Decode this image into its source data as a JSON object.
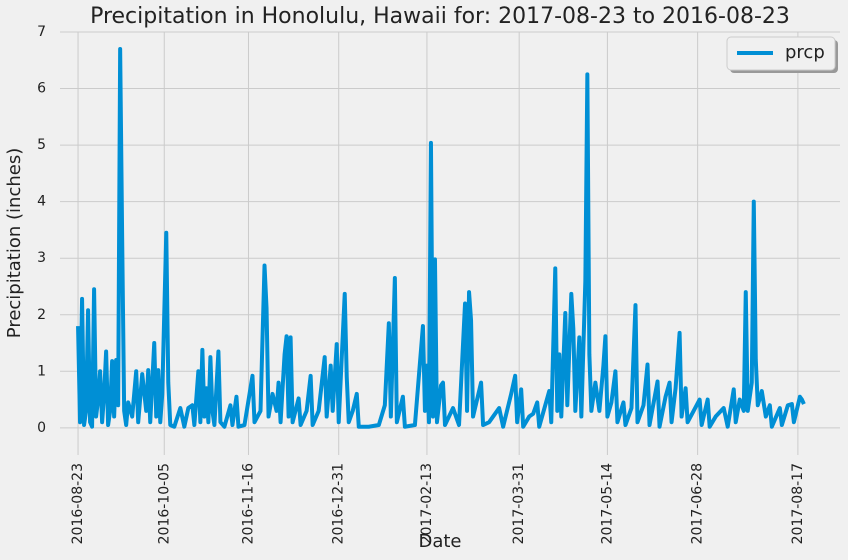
{
  "chart_data": {
    "type": "line",
    "title": "Precipitation in Honolulu, Hawaii for: 2017-08-23 to 2016-08-23",
    "x_label": "Date",
    "y_label": "Precipitation (inches)",
    "x": [
      "2016-08-23",
      "2016-08-24",
      "2016-08-25",
      "2016-08-26",
      "2016-08-27",
      "2016-08-28",
      "2016-08-29",
      "2016-08-30",
      "2016-08-31",
      "2016-09-01",
      "2016-09-02",
      "2016-09-03",
      "2016-09-04",
      "2016-09-05",
      "2016-09-06",
      "2016-09-07",
      "2016-09-08",
      "2016-09-09",
      "2016-09-10",
      "2016-09-11",
      "2016-09-12",
      "2016-09-13",
      "2016-09-14",
      "2016-09-15",
      "2016-09-16",
      "2016-09-17",
      "2016-09-19",
      "2016-09-21",
      "2016-09-22",
      "2016-09-24",
      "2016-09-26",
      "2016-09-27",
      "2016-09-28",
      "2016-09-30",
      "2016-10-01",
      "2016-10-02",
      "2016-10-03",
      "2016-10-04",
      "2016-10-06",
      "2016-10-07",
      "2016-10-08",
      "2016-10-10",
      "2016-10-13",
      "2016-10-15",
      "2016-10-17",
      "2016-10-19",
      "2016-10-20",
      "2016-10-22",
      "2016-10-23",
      "2016-10-24",
      "2016-10-25",
      "2016-10-26",
      "2016-10-27",
      "2016-10-28",
      "2016-10-29",
      "2016-10-30",
      "2016-11-01",
      "2016-11-02",
      "2016-11-04",
      "2016-11-07",
      "2016-11-08",
      "2016-11-10",
      "2016-11-11",
      "2016-11-14",
      "2016-11-18",
      "2016-11-19",
      "2016-11-22",
      "2016-11-24",
      "2016-11-25",
      "2016-11-26",
      "2016-11-28",
      "2016-11-30",
      "2016-12-01",
      "2016-12-02",
      "2016-12-04",
      "2016-12-05",
      "2016-12-06",
      "2016-12-07",
      "2016-12-08",
      "2016-12-11",
      "2016-12-12",
      "2016-12-15",
      "2016-12-17",
      "2016-12-18",
      "2016-12-21",
      "2016-12-24",
      "2016-12-25",
      "2016-12-27",
      "2016-12-28",
      "2016-12-30",
      "2016-12-31",
      "2017-01-03",
      "2017-01-04",
      "2017-01-05",
      "2017-01-07",
      "2017-01-09",
      "2017-01-10",
      "2017-01-15",
      "2017-01-20",
      "2017-01-23",
      "2017-01-25",
      "2017-01-26",
      "2017-01-28",
      "2017-01-29",
      "2017-02-01",
      "2017-02-02",
      "2017-02-07",
      "2017-02-11",
      "2017-02-12",
      "2017-02-13",
      "2017-02-14",
      "2017-02-15",
      "2017-02-16",
      "2017-02-17",
      "2017-02-18",
      "2017-02-20",
      "2017-02-21",
      "2017-02-22",
      "2017-02-26",
      "2017-03-01",
      "2017-03-04",
      "2017-03-05",
      "2017-03-06",
      "2017-03-07",
      "2017-03-08",
      "2017-03-10",
      "2017-03-12",
      "2017-03-13",
      "2017-03-16",
      "2017-03-21",
      "2017-03-23",
      "2017-03-27",
      "2017-03-29",
      "2017-03-30",
      "2017-04-01",
      "2017-04-02",
      "2017-04-05",
      "2017-04-07",
      "2017-04-09",
      "2017-04-10",
      "2017-04-15",
      "2017-04-16",
      "2017-04-18",
      "2017-04-19",
      "2017-04-20",
      "2017-04-21",
      "2017-04-23",
      "2017-04-24",
      "2017-04-26",
      "2017-04-27",
      "2017-04-28",
      "2017-04-30",
      "2017-05-01",
      "2017-05-03",
      "2017-05-04",
      "2017-05-05",
      "2017-05-06",
      "2017-05-08",
      "2017-05-10",
      "2017-05-12",
      "2017-05-13",
      "2017-05-14",
      "2017-05-16",
      "2017-05-18",
      "2017-05-19",
      "2017-05-22",
      "2017-05-23",
      "2017-05-26",
      "2017-05-28",
      "2017-05-29",
      "2017-06-01",
      "2017-06-03",
      "2017-06-04",
      "2017-06-08",
      "2017-06-09",
      "2017-06-12",
      "2017-06-14",
      "2017-06-15",
      "2017-06-17",
      "2017-06-19",
      "2017-06-20",
      "2017-06-22",
      "2017-06-23",
      "2017-06-26",
      "2017-06-29",
      "2017-06-30",
      "2017-07-03",
      "2017-07-04",
      "2017-07-07",
      "2017-07-11",
      "2017-07-13",
      "2017-07-16",
      "2017-07-17",
      "2017-07-19",
      "2017-07-21",
      "2017-07-22",
      "2017-07-23",
      "2017-07-25",
      "2017-07-26",
      "2017-07-27",
      "2017-07-28",
      "2017-07-30",
      "2017-08-01",
      "2017-08-03",
      "2017-08-04",
      "2017-08-08",
      "2017-08-09",
      "2017-08-12",
      "2017-08-14",
      "2017-08-15",
      "2017-08-18",
      "2017-08-19",
      "2017-08-20"
    ],
    "series": [
      {
        "name": "prcp",
        "color": "#008fd5",
        "values": [
          1.8,
          0.1,
          2.28,
          0.05,
          0.3,
          2.08,
          0.1,
          0.02,
          2.45,
          0.2,
          0.5,
          1.0,
          0.1,
          0.6,
          1.35,
          0.05,
          0.3,
          1.18,
          0.2,
          1.2,
          0.4,
          6.7,
          3.35,
          0.3,
          0.05,
          0.45,
          0.2,
          1.0,
          0.1,
          0.95,
          0.3,
          1.02,
          0.1,
          1.5,
          0.2,
          1.02,
          0.1,
          0.6,
          3.45,
          0.8,
          0.05,
          0.02,
          0.35,
          0.02,
          0.35,
          0.4,
          0.05,
          1.0,
          0.1,
          1.38,
          0.2,
          0.7,
          0.1,
          1.25,
          0.3,
          0.05,
          1.35,
          0.1,
          0.02,
          0.4,
          0.05,
          0.55,
          0.02,
          0.05,
          0.92,
          0.1,
          0.3,
          2.87,
          2.12,
          0.2,
          0.6,
          0.3,
          0.8,
          0.1,
          1.3,
          1.62,
          0.2,
          1.6,
          0.1,
          0.52,
          0.05,
          0.3,
          0.92,
          0.05,
          0.3,
          1.25,
          0.2,
          1.1,
          0.3,
          1.48,
          0.1,
          2.37,
          0.9,
          0.1,
          0.3,
          0.6,
          0.02,
          0.02,
          0.05,
          0.4,
          1.85,
          0.2,
          2.65,
          0.1,
          0.55,
          0.02,
          0.05,
          1.8,
          0.3,
          1.1,
          0.1,
          5.04,
          0.2,
          2.98,
          0.1,
          0.75,
          0.8,
          0.05,
          0.35,
          0.05,
          2.2,
          0.3,
          2.4,
          1.9,
          0.2,
          0.5,
          0.8,
          0.05,
          0.1,
          0.35,
          0.02,
          0.6,
          0.92,
          0.1,
          0.68,
          0.02,
          0.2,
          0.25,
          0.45,
          0.02,
          0.65,
          0.1,
          2.82,
          0.3,
          1.3,
          0.2,
          2.03,
          0.4,
          2.37,
          1.75,
          0.3,
          1.6,
          0.2,
          2.6,
          6.25,
          1.3,
          0.3,
          0.8,
          0.3,
          1.1,
          1.62,
          0.2,
          0.45,
          1.0,
          0.1,
          0.45,
          0.05,
          0.35,
          2.17,
          0.1,
          0.4,
          1.12,
          0.05,
          0.82,
          0.02,
          0.55,
          0.8,
          0.1,
          0.7,
          1.68,
          0.2,
          0.7,
          0.1,
          0.3,
          0.5,
          0.05,
          0.5,
          0.02,
          0.2,
          0.35,
          0.02,
          0.68,
          0.1,
          0.5,
          0.3,
          2.4,
          0.3,
          0.8,
          4.0,
          1.2,
          0.4,
          0.65,
          0.2,
          0.4,
          0.02,
          0.35,
          0.05,
          0.4,
          0.42,
          0.1,
          0.55,
          0.5,
          0.42
        ]
      }
    ],
    "xlim": [
      "2016-08-14",
      "2017-09-07"
    ],
    "xticks": [
      "2016-08-23",
      "2016-10-05",
      "2016-11-16",
      "2016-12-31",
      "2017-02-13",
      "2017-03-31",
      "2017-05-14",
      "2017-06-28",
      "2017-08-17"
    ],
    "ylim": [
      -0.48,
      7
    ],
    "yticks": [
      0,
      1,
      2,
      3,
      4,
      5,
      6,
      7
    ],
    "grid": true,
    "legend": "upper right"
  }
}
